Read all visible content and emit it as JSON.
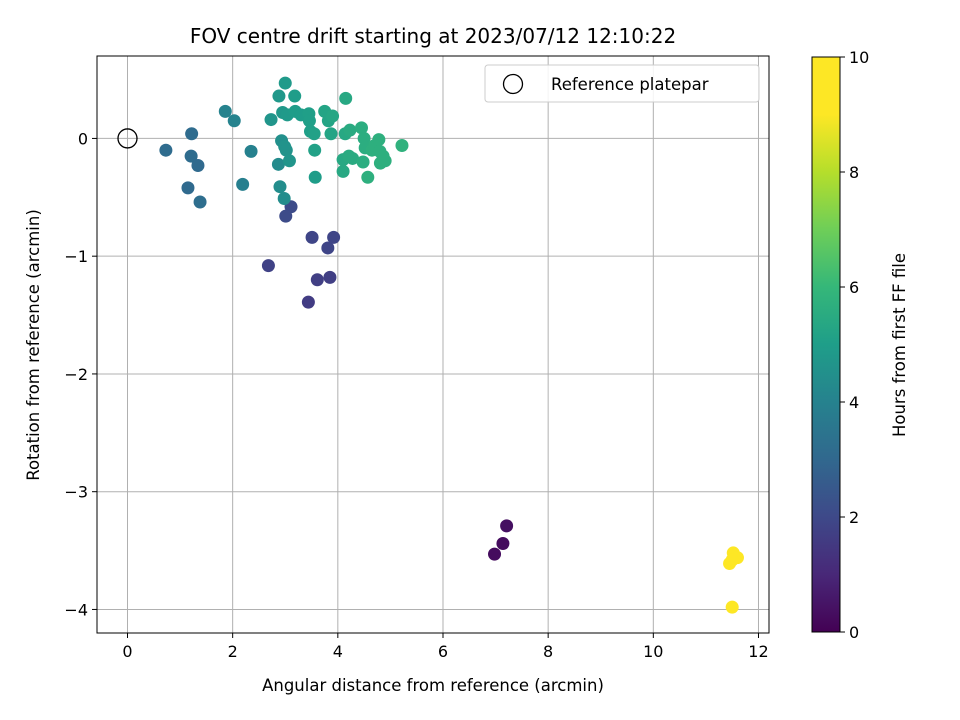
{
  "chart_data": {
    "type": "scatter",
    "title": "FOV centre drift starting at 2023/07/12 12:10:22",
    "xlabel": "Angular distance from reference (arcmin)",
    "ylabel": "Rotation from reference (arcmin)",
    "xlim": [
      -0.58,
      12.2
    ],
    "ylim": [
      -4.2,
      0.7
    ],
    "xticks": [
      0,
      2,
      4,
      6,
      8,
      10,
      12
    ],
    "yticks": [
      0,
      -1,
      -2,
      -3,
      -4
    ],
    "xtick_labels": [
      "0",
      "2",
      "4",
      "6",
      "8",
      "10",
      "12"
    ],
    "ytick_labels": [
      "0",
      "−1",
      "−2",
      "−3",
      "−4"
    ],
    "grid": true,
    "legend": {
      "position": "top-right",
      "entries": [
        {
          "label": "Reference platepar",
          "marker": "open-circle"
        }
      ]
    },
    "reference_point": {
      "x": 0,
      "y": 0
    },
    "colorbar": {
      "label": "Hours from first FF file",
      "colormap": "viridis",
      "range": [
        0,
        10
      ],
      "ticks": [
        0,
        2,
        4,
        6,
        8,
        10
      ],
      "tick_labels": [
        "0",
        "2",
        "4",
        "6",
        "8",
        "10"
      ]
    },
    "points": [
      {
        "x": 6.98,
        "y": -3.53,
        "c": 0.3
      },
      {
        "x": 7.14,
        "y": -3.44,
        "c": 0.3
      },
      {
        "x": 7.21,
        "y": -3.29,
        "c": 0.4
      },
      {
        "x": 11.5,
        "y": -3.98,
        "c": 10.0
      },
      {
        "x": 11.45,
        "y": -3.61,
        "c": 10.0
      },
      {
        "x": 11.52,
        "y": -3.52,
        "c": 10.0
      },
      {
        "x": 11.6,
        "y": -3.56,
        "c": 10.0
      },
      {
        "x": 11.5,
        "y": -3.58,
        "c": 10.0
      },
      {
        "x": 2.68,
        "y": -1.08,
        "c": 2.0
      },
      {
        "x": 3.44,
        "y": -1.39,
        "c": 1.8
      },
      {
        "x": 3.61,
        "y": -1.2,
        "c": 1.9
      },
      {
        "x": 3.85,
        "y": -1.18,
        "c": 1.9
      },
      {
        "x": 3.81,
        "y": -0.93,
        "c": 2.1
      },
      {
        "x": 3.51,
        "y": -0.84,
        "c": 2.1
      },
      {
        "x": 3.92,
        "y": -0.84,
        "c": 2.1
      },
      {
        "x": 3.11,
        "y": -0.58,
        "c": 2.3
      },
      {
        "x": 3.01,
        "y": -0.66,
        "c": 2.3
      },
      {
        "x": 0.73,
        "y": -0.1,
        "c": 3.5
      },
      {
        "x": 1.22,
        "y": 0.04,
        "c": 3.5
      },
      {
        "x": 1.21,
        "y": -0.15,
        "c": 3.5
      },
      {
        "x": 1.34,
        "y": -0.23,
        "c": 3.4
      },
      {
        "x": 1.15,
        "y": -0.42,
        "c": 3.4
      },
      {
        "x": 1.38,
        "y": -0.54,
        "c": 3.6
      },
      {
        "x": 2.19,
        "y": -0.39,
        "c": 4.3
      },
      {
        "x": 2.35,
        "y": -0.11,
        "c": 4.4
      },
      {
        "x": 1.86,
        "y": 0.23,
        "c": 4.5
      },
      {
        "x": 2.03,
        "y": 0.15,
        "c": 4.5
      },
      {
        "x": 2.87,
        "y": -0.22,
        "c": 4.8
      },
      {
        "x": 2.9,
        "y": -0.41,
        "c": 4.9
      },
      {
        "x": 2.98,
        "y": -0.51,
        "c": 4.9
      },
      {
        "x": 2.93,
        "y": -0.02,
        "c": 5.0
      },
      {
        "x": 2.99,
        "y": -0.07,
        "c": 5.1
      },
      {
        "x": 3.02,
        "y": -0.1,
        "c": 5.1
      },
      {
        "x": 3.08,
        "y": -0.19,
        "c": 5.2
      },
      {
        "x": 2.73,
        "y": 0.16,
        "c": 5.2
      },
      {
        "x": 2.88,
        "y": 0.36,
        "c": 5.3
      },
      {
        "x": 2.95,
        "y": 0.22,
        "c": 5.3
      },
      {
        "x": 3.0,
        "y": 0.47,
        "c": 5.4
      },
      {
        "x": 3.04,
        "y": 0.2,
        "c": 5.4
      },
      {
        "x": 3.18,
        "y": 0.36,
        "c": 5.5
      },
      {
        "x": 3.19,
        "y": 0.23,
        "c": 5.5
      },
      {
        "x": 3.3,
        "y": 0.2,
        "c": 5.5
      },
      {
        "x": 3.45,
        "y": 0.21,
        "c": 5.6
      },
      {
        "x": 3.46,
        "y": 0.15,
        "c": 5.6
      },
      {
        "x": 3.48,
        "y": 0.06,
        "c": 5.6
      },
      {
        "x": 3.55,
        "y": 0.04,
        "c": 5.7
      },
      {
        "x": 3.56,
        "y": -0.1,
        "c": 5.7
      },
      {
        "x": 3.57,
        "y": -0.33,
        "c": 5.5
      },
      {
        "x": 3.75,
        "y": 0.23,
        "c": 5.8
      },
      {
        "x": 3.82,
        "y": 0.15,
        "c": 5.8
      },
      {
        "x": 3.87,
        "y": 0.04,
        "c": 5.8
      },
      {
        "x": 3.9,
        "y": 0.19,
        "c": 5.9
      },
      {
        "x": 4.1,
        "y": -0.28,
        "c": 6.0
      },
      {
        "x": 4.1,
        "y": -0.18,
        "c": 6.0
      },
      {
        "x": 4.14,
        "y": 0.04,
        "c": 6.0
      },
      {
        "x": 4.15,
        "y": 0.34,
        "c": 6.0
      },
      {
        "x": 4.21,
        "y": -0.15,
        "c": 6.1
      },
      {
        "x": 4.23,
        "y": 0.07,
        "c": 6.1
      },
      {
        "x": 4.28,
        "y": -0.17,
        "c": 6.1
      },
      {
        "x": 4.45,
        "y": 0.09,
        "c": 6.2
      },
      {
        "x": 4.48,
        "y": -0.2,
        "c": 6.2
      },
      {
        "x": 4.5,
        "y": 0.0,
        "c": 6.2
      },
      {
        "x": 4.52,
        "y": -0.08,
        "c": 6.2
      },
      {
        "x": 4.57,
        "y": -0.33,
        "c": 6.3
      },
      {
        "x": 4.65,
        "y": -0.1,
        "c": 6.3
      },
      {
        "x": 4.7,
        "y": -0.06,
        "c": 6.3
      },
      {
        "x": 4.78,
        "y": -0.01,
        "c": 6.3
      },
      {
        "x": 4.8,
        "y": -0.11,
        "c": 6.3
      },
      {
        "x": 4.81,
        "y": -0.21,
        "c": 6.3
      },
      {
        "x": 4.86,
        "y": -0.15,
        "c": 6.3
      },
      {
        "x": 4.9,
        "y": -0.19,
        "c": 6.3
      },
      {
        "x": 5.22,
        "y": -0.06,
        "c": 6.4
      }
    ]
  }
}
